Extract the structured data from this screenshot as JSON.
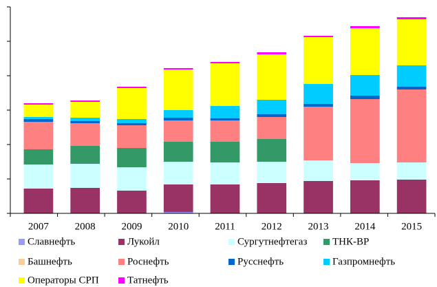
{
  "chart_data": {
    "type": "stacked_bar",
    "categories": [
      "2007",
      "2008",
      "2009",
      "2010",
      "2011",
      "2012",
      "2013",
      "2014",
      "2015"
    ],
    "series": [
      {
        "name": "Славнефть",
        "color": "#9999ff",
        "values": [
          0,
          0,
          0,
          0.4,
          0,
          0,
          0,
          0,
          0
        ]
      },
      {
        "name": "Лукойл",
        "color": "#993366",
        "values": [
          7.2,
          7.4,
          6.6,
          8,
          8.4,
          8.8,
          9.4,
          9.6,
          9.8
        ]
      },
      {
        "name": "Сургутнефтегаз",
        "color": "#ccffff",
        "values": [
          7,
          7,
          6.8,
          6.6,
          6.4,
          6.2,
          6,
          5,
          5
        ]
      },
      {
        "name": "ТНК-BP",
        "color": "#339966",
        "values": [
          4.4,
          5.2,
          5.6,
          5.8,
          6,
          6.6,
          0,
          0,
          0
        ]
      },
      {
        "name": "Башнефть",
        "color": "#ffcc99",
        "values": [
          0,
          0,
          0,
          0,
          0,
          0,
          0,
          0,
          0
        ]
      },
      {
        "name": "Роснефть",
        "color": "#ff8080",
        "values": [
          8,
          6.6,
          6.6,
          6.2,
          6.2,
          6.4,
          15.6,
          18.6,
          21.2
        ]
      },
      {
        "name": "Русснефть",
        "color": "#0066cc",
        "values": [
          0.8,
          0.6,
          0.6,
          0.8,
          0.6,
          0.8,
          0.8,
          1,
          0.8
        ]
      },
      {
        "name": "Газпромнефть",
        "color": "#00ccff",
        "values": [
          0.6,
          1,
          1.2,
          2.2,
          3.6,
          4.2,
          5.8,
          6,
          6.2
        ]
      },
      {
        "name": "Операторы СРП",
        "color": "#ffff00",
        "values": [
          3.6,
          4.6,
          9,
          11.8,
          12.4,
          13.2,
          13.6,
          13.6,
          13.4
        ]
      },
      {
        "name": "Татнефть",
        "color": "#ff00ff",
        "values": [
          0.4,
          0.4,
          0.4,
          0.4,
          0.4,
          0.6,
          0.4,
          0.6,
          0.6
        ]
      }
    ],
    "ylim": [
      0,
      60
    ],
    "yticks": [
      0,
      10,
      20,
      30,
      40,
      50,
      60
    ]
  }
}
